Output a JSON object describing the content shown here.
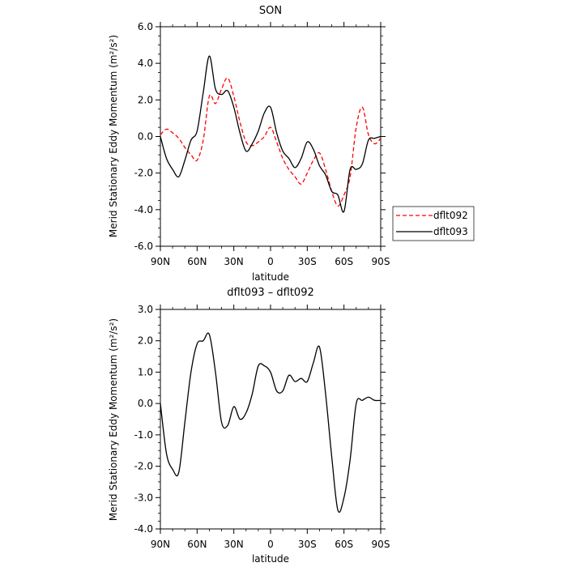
{
  "chart_data": [
    {
      "type": "line",
      "title": "SON",
      "xlabel": "latitude",
      "ylabel": "Merid Stationary Eddy Momentum (m²/s²)",
      "xlim": [
        90,
        -90
      ],
      "ylim": [
        -6,
        6
      ],
      "x_ticks": [
        "90N",
        "60N",
        "30N",
        "0",
        "30S",
        "60S",
        "90S"
      ],
      "y_ticks": [
        "6.0",
        "4.0",
        "2.0",
        "0.0",
        "-2.0",
        "-4.0",
        "-6.0"
      ],
      "grid": false,
      "legend": {
        "placement": "right",
        "entries": [
          "dflt092",
          "dflt093"
        ]
      },
      "series": [
        {
          "name": "dflt092",
          "color": "#ff0000",
          "style": "dashed",
          "x": [
            90,
            85,
            80,
            75,
            70,
            65,
            60,
            55,
            50,
            45,
            40,
            35,
            30,
            25,
            20,
            15,
            10,
            5,
            0,
            -5,
            -10,
            -15,
            -20,
            -25,
            -30,
            -35,
            -40,
            -45,
            -50,
            -55,
            -60,
            -65,
            -70,
            -75,
            -80,
            -85,
            -90
          ],
          "y": [
            0.1,
            0.4,
            0.2,
            -0.1,
            -0.6,
            -1.0,
            -1.3,
            -0.2,
            2.2,
            1.8,
            2.6,
            3.2,
            2.2,
            0.8,
            -0.3,
            -0.5,
            -0.3,
            0.0,
            0.5,
            -0.3,
            -1.2,
            -1.8,
            -2.2,
            -2.6,
            -2.0,
            -1.3,
            -0.9,
            -1.8,
            -3.0,
            -3.8,
            -3.2,
            -2.2,
            0.5,
            1.6,
            0.1,
            -0.4,
            -0.1
          ]
        },
        {
          "name": "dflt093",
          "color": "#000000",
          "style": "solid",
          "x": [
            90,
            85,
            80,
            75,
            70,
            65,
            60,
            55,
            50,
            45,
            40,
            35,
            30,
            25,
            20,
            15,
            10,
            5,
            0,
            -5,
            -10,
            -15,
            -20,
            -25,
            -30,
            -35,
            -40,
            -45,
            -50,
            -55,
            -60,
            -65,
            -70,
            -75,
            -80,
            -85,
            -90
          ],
          "y": [
            0.0,
            -1.2,
            -1.8,
            -2.2,
            -1.3,
            -0.2,
            0.3,
            2.4,
            4.4,
            2.6,
            2.3,
            2.5,
            1.6,
            0.2,
            -0.8,
            -0.4,
            0.3,
            1.3,
            1.6,
            0.2,
            -0.8,
            -1.2,
            -1.7,
            -1.2,
            -0.3,
            -0.7,
            -1.6,
            -2.1,
            -3.0,
            -3.2,
            -4.1,
            -1.8,
            -1.8,
            -1.5,
            -0.2,
            -0.1,
            0.0
          ]
        }
      ]
    },
    {
      "type": "line",
      "title": "dflt093 – dflt092",
      "xlabel": "latitude",
      "ylabel": "Merid Stationary Eddy Momentum (m²/s²)",
      "xlim": [
        90,
        -90
      ],
      "ylim": [
        -4,
        3
      ],
      "x_ticks": [
        "90N",
        "60N",
        "30N",
        "0",
        "30S",
        "60S",
        "90S"
      ],
      "y_ticks": [
        "3.0",
        "2.0",
        "1.0",
        "0.0",
        "-1.0",
        "-2.0",
        "-3.0",
        "-4.0"
      ],
      "grid": false,
      "series": [
        {
          "color": "#000000",
          "style": "solid",
          "x": [
            90,
            85,
            80,
            75,
            70,
            65,
            60,
            55,
            50,
            45,
            40,
            35,
            30,
            25,
            20,
            15,
            10,
            5,
            0,
            -5,
            -10,
            -15,
            -20,
            -25,
            -30,
            -35,
            -40,
            -45,
            -50,
            -55,
            -60,
            -65,
            -70,
            -75,
            -80,
            -85,
            -90
          ],
          "y": [
            0.0,
            -1.6,
            -2.1,
            -2.2,
            -0.6,
            1.0,
            1.9,
            2.0,
            2.2,
            1.0,
            -0.6,
            -0.7,
            -0.1,
            -0.5,
            -0.3,
            0.3,
            1.2,
            1.2,
            1.0,
            0.4,
            0.4,
            0.9,
            0.7,
            0.8,
            0.7,
            1.3,
            1.8,
            0.3,
            -1.7,
            -3.4,
            -3.0,
            -1.8,
            0.0,
            0.1,
            0.2,
            0.1,
            0.1
          ]
        }
      ]
    }
  ]
}
